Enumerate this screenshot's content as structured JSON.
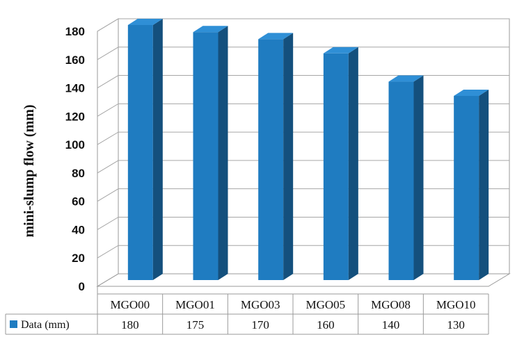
{
  "chart_data": {
    "type": "bar",
    "title": "",
    "xlabel": "",
    "ylabel": "mini-slump flow (mm)",
    "ylim": [
      0,
      180
    ],
    "yticks": [
      0,
      20,
      40,
      60,
      80,
      100,
      120,
      140,
      160,
      180
    ],
    "grid": true,
    "style": "3d-column",
    "legend_placement": "data-table-left",
    "categories": [
      "MGO00",
      "MGO01",
      "MGO03",
      "MGO05",
      "MGO08",
      "MGO10"
    ],
    "series": [
      {
        "name": "Data (mm)",
        "color": "#1f7cc1",
        "values": [
          180,
          175,
          170,
          160,
          140,
          130
        ]
      }
    ]
  }
}
